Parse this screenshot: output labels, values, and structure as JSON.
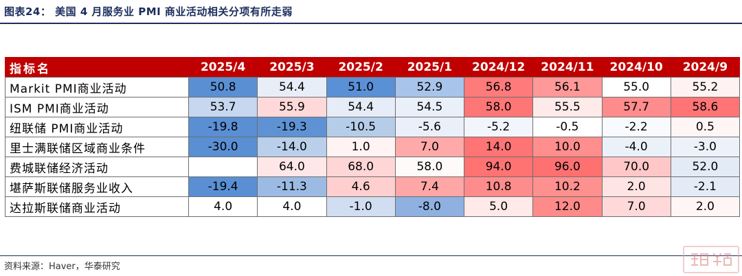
{
  "figure": {
    "title": "图表24：  美国 4 月服务业 PMI 商业活动相关分项有所走弱",
    "source": "资料来源：Haver，华泰研究"
  },
  "table": {
    "name_header": "指标名",
    "columns": [
      "2025/4",
      "2025/3",
      "2025/2",
      "2025/1",
      "2024/12",
      "2024/11",
      "2024/10",
      "2024/9"
    ],
    "rows": [
      {
        "label": "Markit PMI商业活动",
        "values": [
          "50.8",
          "54.4",
          "51.0",
          "52.9",
          "56.8",
          "56.1",
          "55.0",
          "55.2"
        ]
      },
      {
        "label": "ISM PMI商业活动",
        "values": [
          "53.7",
          "55.9",
          "54.4",
          "54.5",
          "58.0",
          "55.5",
          "57.7",
          "58.6"
        ]
      },
      {
        "label": "纽联储 PMI商业活动",
        "values": [
          "-19.8",
          "-19.3",
          "-10.5",
          "-5.6",
          "-5.2",
          "-0.5",
          "-2.2",
          "0.5"
        ]
      },
      {
        "label": "里士满联储区域商业条件",
        "values": [
          "-30.0",
          "-14.0",
          "1.0",
          "7.0",
          "14.0",
          "10.0",
          "-4.0",
          "-3.0"
        ]
      },
      {
        "label": "费城联储经济活动",
        "values": [
          "",
          "64.0",
          "68.0",
          "58.0",
          "94.0",
          "96.0",
          "70.0",
          "52.0"
        ]
      },
      {
        "label": "堪萨斯联储服务业收入",
        "values": [
          "-19.4",
          "-11.3",
          "4.6",
          "7.4",
          "10.8",
          "10.2",
          "2.0",
          "-2.1"
        ]
      },
      {
        "label": "达拉斯联储商业活动",
        "values": [
          "4.0",
          "4.0",
          "-1.0",
          "-8.0",
          "5.0",
          "12.0",
          "7.0",
          "2.0"
        ]
      }
    ],
    "cell_colors": [
      [
        "#5b8fd4",
        "#e8eef8",
        "#5a90d6",
        "#a9c4ea",
        "#ff7a7a",
        "#ff9898",
        "#ffffff",
        "#fff2f2"
      ],
      [
        "#c6d7ef",
        "#ffd9d9",
        "#e6edf8",
        "#eaf0f9",
        "#ff7676",
        "#ffeaea",
        "#ff8c8c",
        "#ff7474"
      ],
      [
        "#5a8fd3",
        "#5e92d4",
        "#b6cde9",
        "#eaf0fa",
        "#f2f5fb",
        "#ffffff",
        "#f8fafd",
        "#fff5f5"
      ],
      [
        "#5a8fd3",
        "#b9cfea",
        "#fff3f3",
        "#ffa9a9",
        "#ff7575",
        "#ff8e8e",
        "#ebf1f9",
        "#edf2fa"
      ],
      [
        "#ffffff",
        "#ffe7e7",
        "#ffd6d6",
        "#fffafa",
        "#ff7373",
        "#ff7171",
        "#ffc7c7",
        "#e3ebf7"
      ],
      [
        "#5a8fd3",
        "#9bbbe4",
        "#ffcfcf",
        "#ffa6a6",
        "#ff8c8c",
        "#ff9090",
        "#ffe4e4",
        "#e3ebf7"
      ],
      [
        "#ffffff",
        "#ffffff",
        "#d1def1",
        "#8fb1e1",
        "#ffe9e9",
        "#ff8a8a",
        "#ffd9d9",
        "#fff5f5"
      ]
    ]
  },
  "colors": {
    "header_bg": "#c00000",
    "header_text": "#ffffff",
    "title_color": "#1b2d5c"
  },
  "watermark": {
    "icon": "htsc-logo-icon"
  }
}
